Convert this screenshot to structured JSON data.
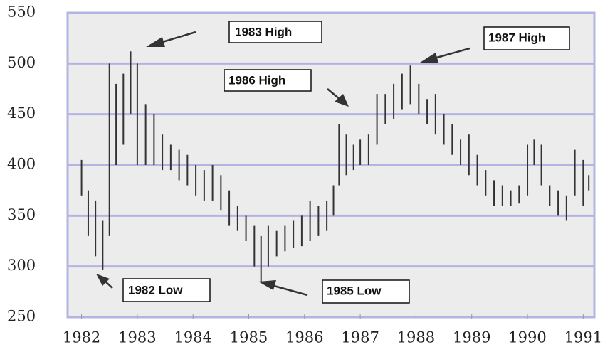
{
  "chart_data": {
    "type": "range-bar",
    "annotations": [
      "1983 High",
      "1987 High",
      "1986 High",
      "1982 Low",
      "1985 Low"
    ],
    "x": [
      1982.0,
      1982.12,
      1982.25,
      1982.38,
      1982.5,
      1982.62,
      1982.75,
      1982.88,
      1983.0,
      1983.15,
      1983.3,
      1983.45,
      1983.6,
      1983.75,
      1983.9,
      1984.05,
      1984.2,
      1984.35,
      1984.5,
      1984.65,
      1984.8,
      1984.95,
      1985.1,
      1985.22,
      1985.35,
      1985.5,
      1985.65,
      1985.8,
      1985.95,
      1986.1,
      1986.25,
      1986.4,
      1986.52,
      1986.62,
      1986.75,
      1986.88,
      1987.0,
      1987.15,
      1987.3,
      1987.45,
      1987.6,
      1987.75,
      1987.9,
      1988.05,
      1988.2,
      1988.35,
      1988.5,
      1988.65,
      1988.8,
      1988.95,
      1989.1,
      1989.25,
      1989.4,
      1989.55,
      1989.7,
      1989.85,
      1990.0,
      1990.12,
      1990.25,
      1990.4,
      1990.55,
      1990.7,
      1990.85,
      1991.0,
      1991.1
    ],
    "high": [
      405,
      375,
      365,
      345,
      500,
      480,
      490,
      512,
      500,
      460,
      450,
      430,
      420,
      415,
      410,
      400,
      395,
      400,
      390,
      375,
      360,
      350,
      340,
      330,
      340,
      335,
      340,
      345,
      350,
      365,
      360,
      365,
      380,
      440,
      430,
      420,
      425,
      430,
      470,
      470,
      480,
      490,
      498,
      480,
      465,
      470,
      450,
      440,
      425,
      430,
      410,
      395,
      385,
      380,
      375,
      380,
      420,
      425,
      420,
      380,
      375,
      370,
      415,
      405,
      390
    ],
    "low": [
      370,
      330,
      310,
      297,
      330,
      400,
      420,
      450,
      400,
      400,
      400,
      395,
      395,
      385,
      380,
      370,
      365,
      365,
      355,
      340,
      335,
      325,
      300,
      284,
      300,
      310,
      315,
      318,
      320,
      325,
      330,
      335,
      350,
      380,
      390,
      395,
      400,
      400,
      420,
      440,
      445,
      455,
      460,
      450,
      440,
      430,
      420,
      410,
      400,
      390,
      380,
      370,
      360,
      360,
      360,
      362,
      370,
      400,
      380,
      360,
      350,
      345,
      370,
      360,
      375
    ],
    "color": "#333333",
    "xlim": [
      1981.75,
      1991.2
    ],
    "xticks": [
      1982,
      1983,
      1984,
      1985,
      1986,
      1987,
      1988,
      1989,
      1990,
      1991
    ],
    "ylim": [
      250,
      550
    ],
    "yticks": [
      250,
      300,
      350,
      400,
      450,
      500,
      550
    ],
    "grid": true,
    "grid_color": "#b4b4e2"
  }
}
